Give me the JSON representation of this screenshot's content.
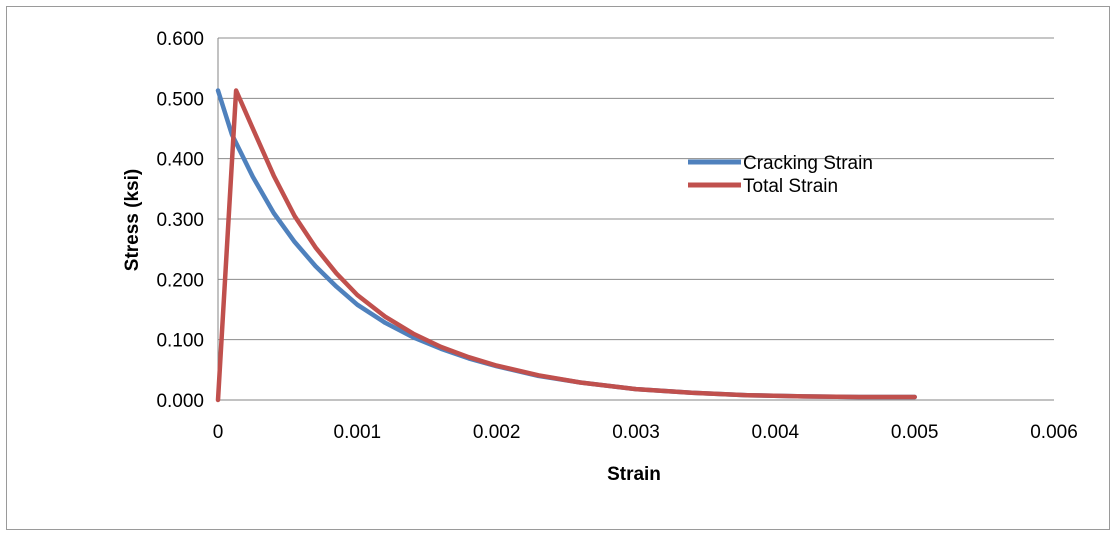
{
  "chart_data": {
    "type": "line",
    "title": "",
    "xlabel": "Strain",
    "ylabel": "Stress (ksi)",
    "xlim": [
      0,
      0.006
    ],
    "ylim": [
      0,
      0.6
    ],
    "x_ticks": [
      "0",
      "0.001",
      "0.002",
      "0.003",
      "0.004",
      "0.005",
      "0.006"
    ],
    "y_ticks": [
      "0.000",
      "0.100",
      "0.200",
      "0.300",
      "0.400",
      "0.500",
      "0.600"
    ],
    "grid": "horizontal",
    "legend_position": "right",
    "series": [
      {
        "name": "Cracking Strain",
        "color": "#4F81BD",
        "x": [
          0,
          0.0001,
          0.00025,
          0.0004,
          0.00055,
          0.0007,
          0.00085,
          0.001,
          0.0012,
          0.0014,
          0.0016,
          0.0018,
          0.002,
          0.0023,
          0.0026,
          0.003,
          0.0034,
          0.0038,
          0.0042,
          0.0046,
          0.005
        ],
        "y": [
          0.513,
          0.44,
          0.37,
          0.31,
          0.262,
          0.222,
          0.188,
          0.158,
          0.128,
          0.104,
          0.085,
          0.069,
          0.056,
          0.04,
          0.029,
          0.018,
          0.012,
          0.008,
          0.006,
          0.005,
          0.005
        ]
      },
      {
        "name": "Total Strain",
        "color": "#C0504D",
        "x": [
          0,
          0.00013,
          0.00025,
          0.0004,
          0.00055,
          0.0007,
          0.00085,
          0.001,
          0.0012,
          0.0014,
          0.0016,
          0.0018,
          0.002,
          0.0023,
          0.0026,
          0.003,
          0.0034,
          0.0038,
          0.0042,
          0.0046,
          0.005
        ],
        "y": [
          0,
          0.513,
          0.45,
          0.372,
          0.305,
          0.253,
          0.21,
          0.174,
          0.138,
          0.11,
          0.088,
          0.071,
          0.057,
          0.041,
          0.029,
          0.018,
          0.012,
          0.008,
          0.006,
          0.005,
          0.005
        ]
      }
    ]
  }
}
